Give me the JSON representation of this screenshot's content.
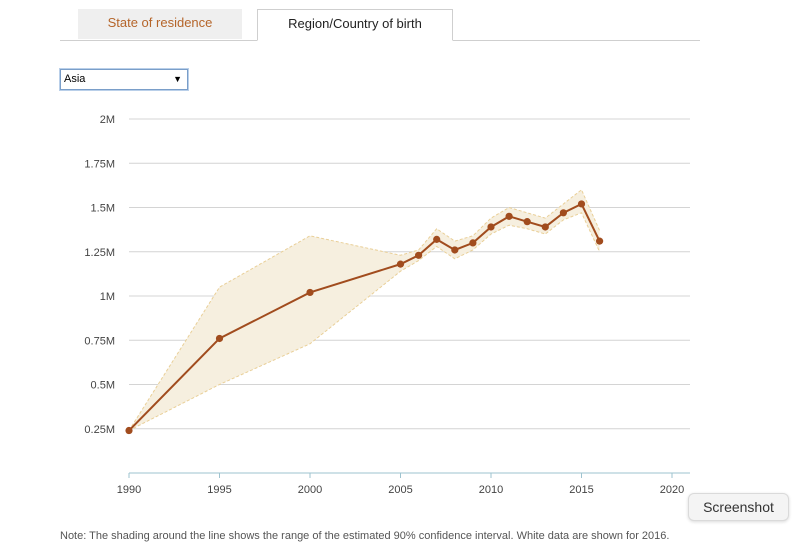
{
  "tabs": [
    {
      "label": "State of residence",
      "active": false
    },
    {
      "label": "Region/Country of birth",
      "active": true
    }
  ],
  "region_select": {
    "selected": "Asia"
  },
  "note_text": "Note: The shading around the line shows the range of the estimated 90% confidence interval. White data are shown for 2016.",
  "screenshot_button": "Screenshot",
  "colors": {
    "line": "#a14c1e",
    "band": "#f6efdf",
    "band_border": "#e9cf97",
    "accent_tab": "#b5652a"
  },
  "chart_data": {
    "type": "line",
    "title": "",
    "xlabel": "",
    "ylabel": "",
    "x_ticks": [
      1990,
      1995,
      2000,
      2005,
      2010,
      2015,
      2020
    ],
    "y_ticks": [
      {
        "value": 0.25,
        "label": "0.25M"
      },
      {
        "value": 0.5,
        "label": "0.5M"
      },
      {
        "value": 0.75,
        "label": "0.75M"
      },
      {
        "value": 1.0,
        "label": "1M"
      },
      {
        "value": 1.25,
        "label": "1.25M"
      },
      {
        "value": 1.5,
        "label": "1.5M"
      },
      {
        "value": 1.75,
        "label": "1.75M"
      },
      {
        "value": 2.0,
        "label": "2M"
      }
    ],
    "xlim": [
      1990,
      2021
    ],
    "ylim": [
      0,
      2.0
    ],
    "grid": true,
    "series": [
      {
        "x": [
          1990,
          1995,
          2000,
          2005,
          2006,
          2007,
          2008,
          2009,
          2010,
          2011,
          2012,
          2013,
          2014,
          2015,
          2016
        ],
        "y": [
          0.24,
          0.76,
          1.02,
          1.18,
          1.23,
          1.32,
          1.26,
          1.3,
          1.39,
          1.45,
          1.42,
          1.39,
          1.47,
          1.52,
          1.31
        ],
        "lower": [
          0.24,
          0.5,
          0.73,
          1.14,
          1.2,
          1.28,
          1.21,
          1.26,
          1.35,
          1.4,
          1.38,
          1.35,
          1.43,
          1.47,
          1.25
        ],
        "upper": [
          0.24,
          1.05,
          1.34,
          1.23,
          1.26,
          1.38,
          1.31,
          1.34,
          1.44,
          1.5,
          1.47,
          1.44,
          1.52,
          1.6,
          1.37
        ]
      }
    ]
  }
}
